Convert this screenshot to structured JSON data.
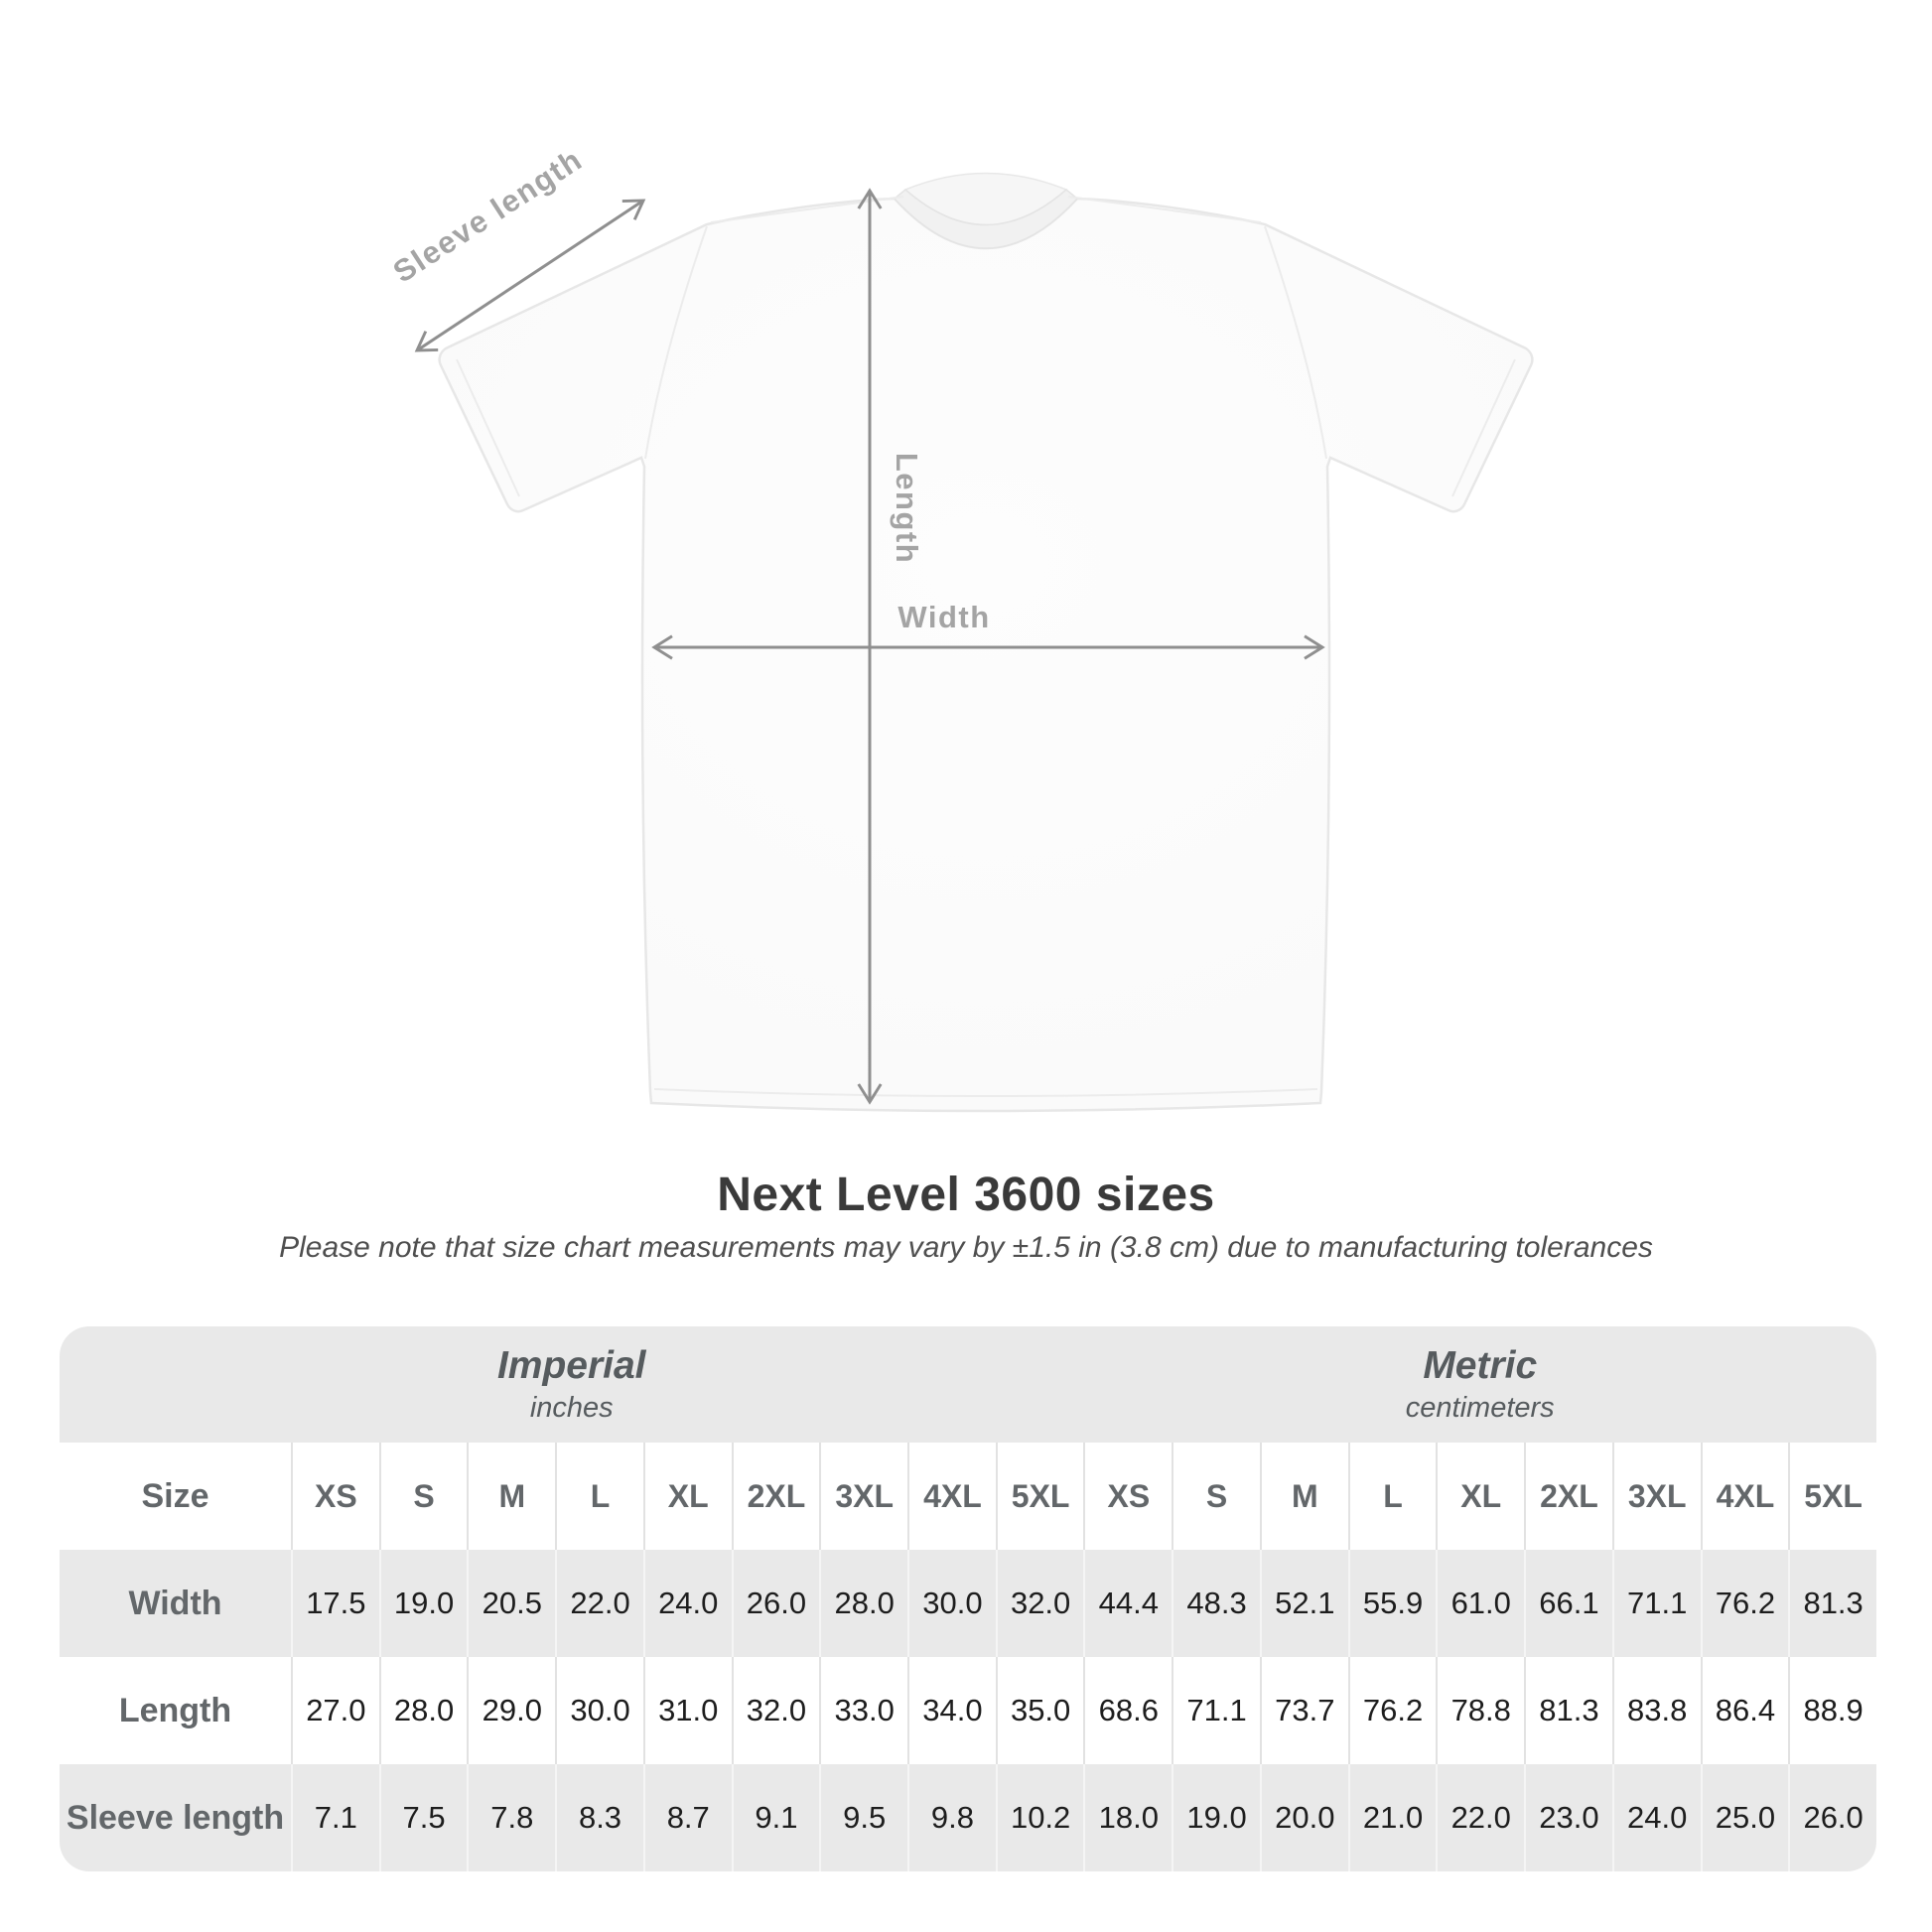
{
  "diagram": {
    "sleeve_label": "Sleeve length",
    "length_label": "Length",
    "width_label": "Width"
  },
  "chart_data": {
    "type": "table",
    "title": "Next Level 3600 sizes",
    "subtitle": "Please note that size chart measurements may vary by ±1.5 in (3.8 cm) due to manufacturing tolerances",
    "unit_groups": [
      {
        "label": "Imperial",
        "sublabel": "inches"
      },
      {
        "label": "Metric",
        "sublabel": "centimeters"
      }
    ],
    "corner_header": "Size",
    "sizes": [
      "XS",
      "S",
      "M",
      "L",
      "XL",
      "2XL",
      "3XL",
      "4XL",
      "5XL"
    ],
    "rows": [
      {
        "label": "Width",
        "imperial": [
          17.5,
          19.0,
          20.5,
          22.0,
          24.0,
          26.0,
          28.0,
          30.0,
          32.0
        ],
        "metric": [
          44.4,
          48.3,
          52.1,
          55.9,
          61.0,
          66.1,
          71.1,
          76.2,
          81.3
        ]
      },
      {
        "label": "Length",
        "imperial": [
          27.0,
          28.0,
          29.0,
          30.0,
          31.0,
          32.0,
          33.0,
          34.0,
          35.0
        ],
        "metric": [
          68.6,
          71.1,
          73.7,
          76.2,
          78.8,
          81.3,
          83.8,
          86.4,
          88.9
        ]
      },
      {
        "label": "Sleeve length",
        "imperial": [
          7.1,
          7.5,
          7.8,
          8.3,
          8.7,
          9.1,
          9.5,
          9.8,
          10.2
        ],
        "metric": [
          18.0,
          19.0,
          20.0,
          21.0,
          22.0,
          23.0,
          24.0,
          25.0,
          26.0
        ]
      }
    ]
  }
}
